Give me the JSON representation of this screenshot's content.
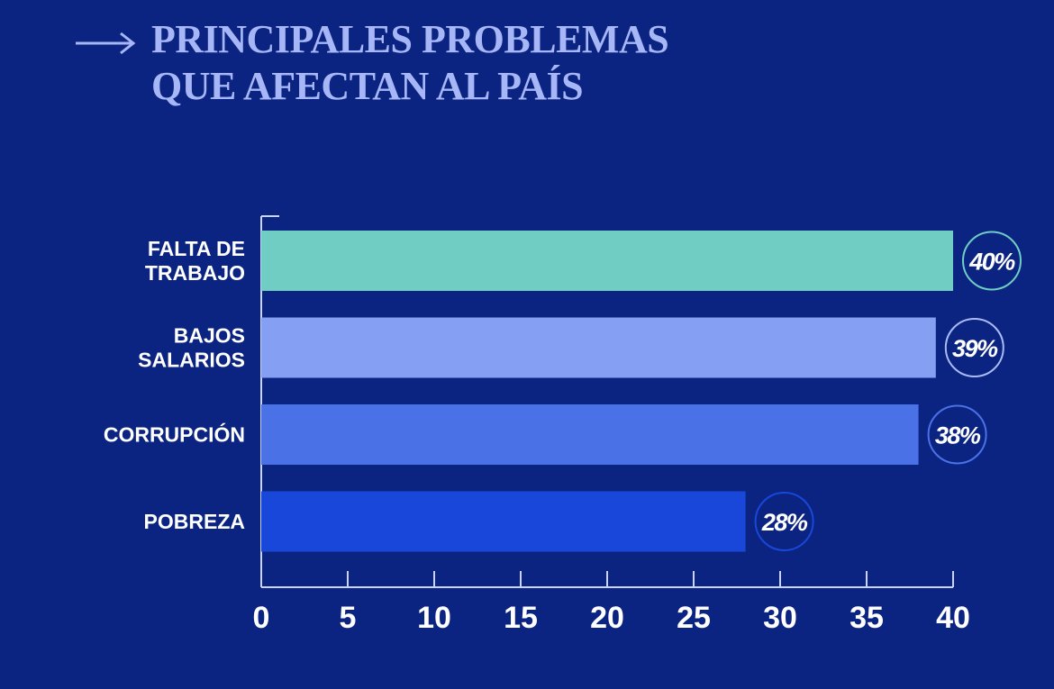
{
  "title_lines": [
    "PRINCIPALES PROBLEMAS",
    "QUE AFECTAN AL PAÍS"
  ],
  "icons": {
    "title_arrow": "right-arrow-icon"
  },
  "colors": {
    "background": "#0b2482",
    "title": "#a6b6f6",
    "axis": "#c9d3fb",
    "text": "#ffffff"
  },
  "chart_data": {
    "type": "bar",
    "orientation": "horizontal",
    "title": "PRINCIPALES PROBLEMAS QUE AFECTAN AL PAÍS",
    "categories": [
      [
        "FALTA DE",
        "TRABAJO"
      ],
      [
        "BAJOS",
        "SALARIOS"
      ],
      [
        "CORRUPCIÓN"
      ],
      [
        "POBREZA"
      ]
    ],
    "values": [
      40,
      39,
      38,
      28
    ],
    "value_labels": [
      "40%",
      "39%",
      "38%",
      "28%"
    ],
    "bar_colors": [
      "#6fcdc4",
      "#859ff3",
      "#4a72e6",
      "#1847d9"
    ],
    "badge_colors": [
      "#6fcdc4",
      "#a9baf6",
      "#4a72e6",
      "#1847d9"
    ],
    "xlim": [
      0,
      40
    ],
    "xticks": [
      0,
      5,
      10,
      15,
      20,
      25,
      30,
      35,
      40
    ],
    "xlabel": "",
    "ylabel": "",
    "grid": false,
    "legend": "none"
  }
}
